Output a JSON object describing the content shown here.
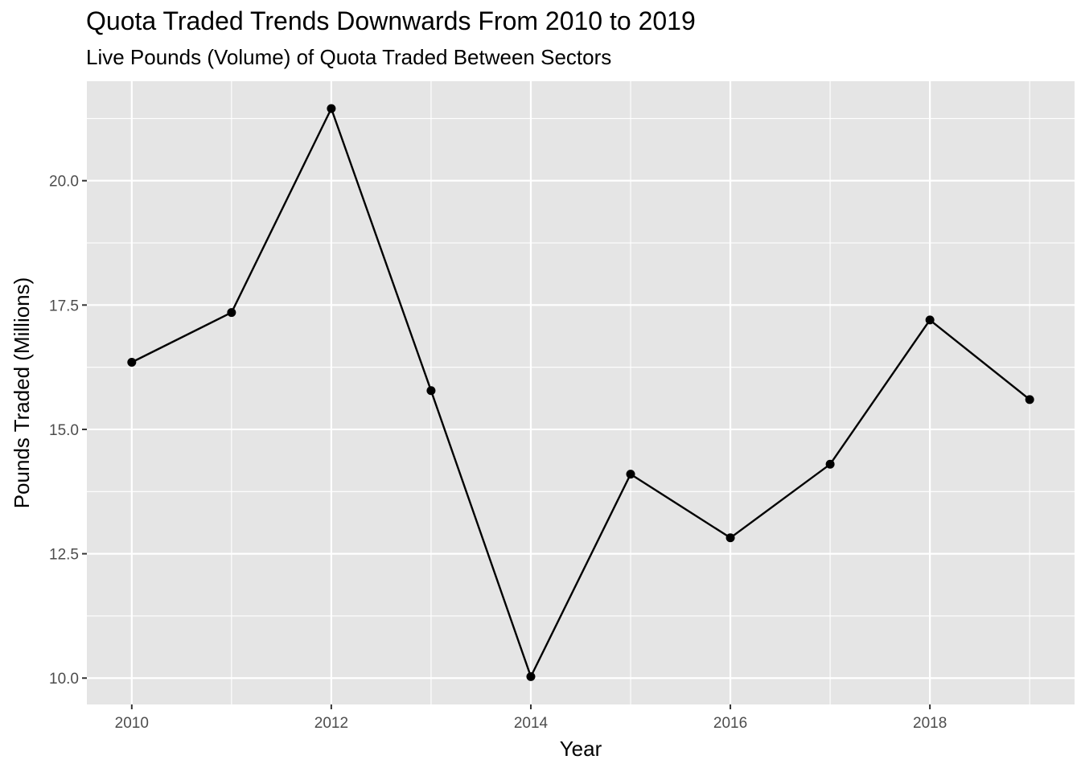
{
  "chart_data": {
    "type": "line",
    "title": "Quota Traded Trends Downwards From 2010 to 2019",
    "subtitle": "Live Pounds (Volume) of Quota Traded Between Sectors",
    "xlabel": "Year",
    "ylabel": "Pounds Traded (Millions)",
    "x": [
      2010,
      2011,
      2012,
      2013,
      2014,
      2015,
      2016,
      2017,
      2018,
      2019
    ],
    "values": [
      16.35,
      17.35,
      21.45,
      15.78,
      10.03,
      14.1,
      12.82,
      14.3,
      17.2,
      15.6
    ],
    "xlim": [
      2009.55,
      2019.45
    ],
    "ylim": [
      9.47,
      22.0
    ],
    "x_ticks": [
      2010,
      2012,
      2014,
      2016,
      2018
    ],
    "x_tick_labels": [
      "2010",
      "2012",
      "2014",
      "2016",
      "2018"
    ],
    "y_ticks": [
      10.0,
      12.5,
      15.0,
      17.5,
      20.0
    ],
    "y_tick_labels": [
      "10.0",
      "12.5",
      "15.0",
      "17.5",
      "20.0"
    ],
    "grid": true,
    "line_color": "#000000",
    "panel_background": "#e5e5e5",
    "grid_color": "#ffffff"
  }
}
